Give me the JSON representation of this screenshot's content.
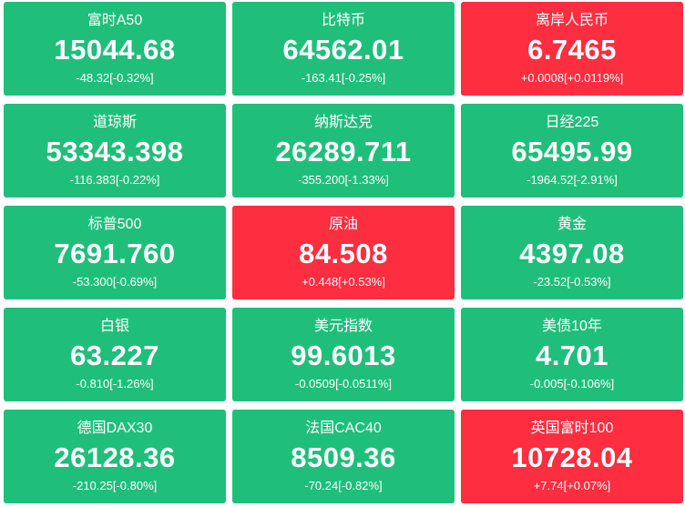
{
  "tiles": [
    {
      "name": "富时A50",
      "price": "15044.68",
      "change": "-48.32[-0.32%]",
      "color": "#1fbf7b"
    },
    {
      "name": "比特币",
      "price": "64562.01",
      "change": "-163.41[-0.25%]",
      "color": "#1fbf7b"
    },
    {
      "name": "离岸人民币",
      "price": "6.7465",
      "change": "+0.0008[+0.0119%]",
      "color": "#fc2e3f"
    },
    {
      "name": "道琼斯",
      "price": "53343.398",
      "change": "-116.383[-0.22%]",
      "color": "#1fbf7b"
    },
    {
      "name": "纳斯达克",
      "price": "26289.711",
      "change": "-355.200[-1.33%]",
      "color": "#1fbf7b"
    },
    {
      "name": "日经225",
      "price": "65495.99",
      "change": "-1964.52[-2.91%]",
      "color": "#1fbf7b"
    },
    {
      "name": "标普500",
      "price": "7691.760",
      "change": "-53.300[-0.69%]",
      "color": "#1fbf7b"
    },
    {
      "name": "原油",
      "price": "84.508",
      "change": "+0.448[+0.53%]",
      "color": "#fc2e3f"
    },
    {
      "name": "黄金",
      "price": "4397.08",
      "change": "-23.52[-0.53%]",
      "color": "#1fbf7b"
    },
    {
      "name": "白银",
      "price": "63.227",
      "change": "-0.810[-1.26%]",
      "color": "#1fbf7b"
    },
    {
      "name": "美元指数",
      "price": "99.6013",
      "change": "-0.0509[-0.0511%]",
      "color": "#1fbf7b"
    },
    {
      "name": "美债10年",
      "price": "4.701",
      "change": "-0.005[-0.106%]",
      "color": "#1fbf7b"
    },
    {
      "name": "德国DAX30",
      "price": "26128.36",
      "change": "-210.25[-0.80%]",
      "color": "#1fbf7b"
    },
    {
      "name": "法国CAC40",
      "price": "8509.36",
      "change": "-70.24[-0.82%]",
      "color": "#1fbf7b"
    },
    {
      "name": "英国富时100",
      "price": "10728.04",
      "change": "+7.74[+0.07%]",
      "color": "#fc2e3f"
    }
  ]
}
